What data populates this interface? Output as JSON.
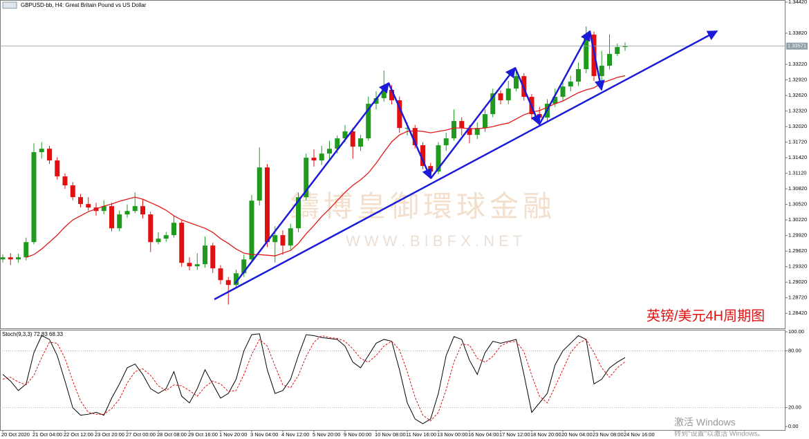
{
  "chart_data": [
    {
      "type": "candlestick",
      "title": "GBPUSD-bb, H4:  Great Britain Pound vs US Dollar",
      "categories": [
        "20 Oct 2020",
        null,
        null,
        null,
        "21 Oct 04:00",
        null,
        null,
        null,
        "22 Oct 12:00",
        null,
        null,
        null,
        "23 Oct 20:00",
        null,
        null,
        null,
        "27 Oct 00:00",
        null,
        null,
        null,
        "28 Oct 08:00",
        null,
        null,
        null,
        "29 Oct 16:00",
        null,
        null,
        null,
        "1 Nov 20:00",
        null,
        null,
        null,
        "3 Nov 04:00",
        null,
        null,
        null,
        "4 Nov 12:00",
        null,
        null,
        null,
        "5 Nov 20:00",
        null,
        null,
        null,
        "9 Nov 00:00",
        null,
        null,
        null,
        "10 Nov 08:00",
        null,
        null,
        null,
        "11 Nov 16:00",
        null,
        null,
        null,
        "13 Nov 00:00",
        null,
        null,
        null,
        "16 Nov 04:00",
        null,
        null,
        null,
        "17 Nov 12:00",
        null,
        null,
        null,
        "18 Nov 20:00",
        null,
        null,
        null,
        "20 Nov 04:00",
        null,
        null,
        null,
        "23 Nov 08:00",
        null,
        null,
        null,
        "24 Nov 16:00"
      ],
      "open": [
        1.2946,
        1.295,
        1.2946,
        1.295,
        1.29793,
        1.31527,
        1.31593,
        1.31367,
        1.3106,
        1.30887,
        1.3066,
        1.30527,
        1.3046,
        1.30393,
        1.30487,
        1.3006,
        1.30327,
        1.30393,
        1.30487,
        1.30327,
        1.29793,
        1.2986,
        1.29927,
        1.30167,
        1.29393,
        1.29327,
        1.29367,
        1.29727,
        1.29287,
        1.2906,
        1.28967,
        1.29193,
        1.2946,
        1.30593,
        1.31233,
        1.29793,
        1.29927,
        1.29727,
        1.3006,
        1.3066,
        1.3142,
        1.31367,
        1.315,
        1.31593,
        1.31793,
        1.31927,
        1.31633,
        1.31793,
        1.3246,
        1.32567,
        1.32727,
        1.32527,
        1.31993,
        1.31993,
        1.3166,
        1.3126,
        1.31153,
        1.3166,
        1.31793,
        1.32127,
        1.31993,
        1.3186,
        1.31993,
        1.3226,
        1.3266,
        1.32527,
        1.32753,
        1.32993,
        1.32593,
        1.3226,
        1.32193,
        1.3246,
        1.32593,
        1.32793,
        1.32887,
        1.33127,
        1.33793,
        1.32993,
        1.33193,
        1.3342,
        1.33553
      ],
      "high": [
        1.2956,
        1.2958,
        1.2957,
        1.2988,
        1.317,
        1.3172,
        1.3165,
        1.3143,
        1.3112,
        1.3095,
        1.3072,
        1.3066,
        1.3055,
        1.306,
        1.3055,
        1.304,
        1.3052,
        1.3075,
        1.3062,
        1.3038,
        1.2998,
        1.2999,
        1.303,
        1.3022,
        1.295,
        1.2958,
        1.299,
        1.2978,
        1.2935,
        1.2912,
        1.2926,
        1.2955,
        1.307,
        1.3162,
        1.313,
        1.301,
        1.3002,
        1.3015,
        1.3075,
        1.315,
        1.3158,
        1.3165,
        1.3175,
        1.3185,
        1.3205,
        1.32,
        1.3186,
        1.326,
        1.327,
        1.331,
        1.3282,
        1.326,
        1.321,
        1.3205,
        1.3172,
        1.3132,
        1.3172,
        1.319,
        1.3235,
        1.322,
        1.3205,
        1.321,
        1.3235,
        1.3275,
        1.3272,
        1.329,
        1.331,
        1.3305,
        1.3265,
        1.324,
        1.3255,
        1.3275,
        1.329,
        1.33,
        1.3325,
        1.3395,
        1.3385,
        1.3348,
        1.338,
        1.3362,
        1.3364
      ],
      "low": [
        1.294,
        1.2935,
        1.294,
        1.2944,
        1.2975,
        1.314,
        1.313,
        1.31,
        1.3082,
        1.306,
        1.3046,
        1.304,
        1.303,
        1.3033,
        1.3,
        1.3,
        1.3026,
        1.3035,
        1.3025,
        1.296,
        1.2975,
        1.298,
        1.2988,
        1.2932,
        1.2925,
        1.2926,
        1.293,
        1.292,
        1.2898,
        1.2859,
        1.289,
        1.2912,
        1.294,
        1.305,
        1.297,
        1.294,
        1.2955,
        1.2965,
        1.2998,
        1.306,
        1.3125,
        1.3128,
        1.314,
        1.315,
        1.3172,
        1.314,
        1.3155,
        1.3175,
        1.3235,
        1.325,
        1.3245,
        1.319,
        1.3185,
        1.316,
        1.312,
        1.3105,
        1.311,
        1.3155,
        1.3175,
        1.3185,
        1.317,
        1.3178,
        1.3192,
        1.322,
        1.3245,
        1.3245,
        1.327,
        1.3252,
        1.3215,
        1.3205,
        1.3212,
        1.324,
        1.3252,
        1.327,
        1.328,
        1.3305,
        1.329,
        1.328,
        1.3312,
        1.3338,
        1.3348
      ],
      "close": [
        1.295,
        1.2946,
        1.295,
        1.29793,
        1.31527,
        1.31593,
        1.31367,
        1.3106,
        1.30887,
        1.3066,
        1.30527,
        1.3046,
        1.30393,
        1.30487,
        1.3006,
        1.30327,
        1.30393,
        1.30487,
        1.30327,
        1.29793,
        1.2986,
        1.29927,
        1.30167,
        1.29393,
        1.29327,
        1.29367,
        1.29727,
        1.29287,
        1.2906,
        1.28967,
        1.29193,
        1.2946,
        1.30593,
        1.31233,
        1.29793,
        1.29927,
        1.29727,
        1.3006,
        1.3066,
        1.3142,
        1.31367,
        1.315,
        1.31593,
        1.31793,
        1.31927,
        1.31633,
        1.31793,
        1.3246,
        1.32567,
        1.32727,
        1.32527,
        1.31993,
        1.31993,
        1.3166,
        1.3126,
        1.31153,
        1.3166,
        1.31793,
        1.32127,
        1.31993,
        1.3186,
        1.31993,
        1.3226,
        1.3266,
        1.32527,
        1.32753,
        1.32993,
        1.32593,
        1.3226,
        1.32193,
        1.3246,
        1.32593,
        1.32793,
        1.32887,
        1.33127,
        1.33793,
        1.32993,
        1.33193,
        1.3342,
        1.33553,
        1.33571
      ],
      "up_color": "#1f9a1f",
      "down_color": "#e01010",
      "ma": {
        "color": "#e01818",
        "values": [
          null,
          null,
          null,
          1.295,
          1.29553,
          1.2966,
          1.29793,
          1.29927,
          1.30087,
          1.3022,
          1.303,
          1.3038,
          1.30433,
          1.30487,
          1.30527,
          1.3058,
          1.3062,
          1.3066,
          1.3062,
          1.30553,
          1.30487,
          1.30407,
          1.303,
          1.3022,
          1.30167,
          1.30113,
          1.3006,
          1.2998,
          1.2986,
          1.29767,
          1.2966,
          1.2958,
          1.29553,
          1.29553,
          1.2954,
          1.29527,
          1.2958,
          1.29633,
          1.29767,
          1.29953,
          1.30113,
          1.30287,
          1.30433,
          1.30593,
          1.30753,
          1.30887,
          1.30993,
          1.31127,
          1.31313,
          1.31527,
          1.31727,
          1.3186,
          1.31927,
          1.3194,
          1.31927,
          1.319,
          1.31927,
          1.31953,
          1.31993,
          1.31993,
          1.3198,
          1.3198,
          1.31993,
          1.3202,
          1.3206,
          1.32087,
          1.32167,
          1.32247,
          1.323,
          1.32327,
          1.32393,
          1.3246,
          1.32513,
          1.32593,
          1.32673,
          1.32727,
          1.32767,
          1.3286,
          1.32913,
          1.32967,
          1.33
        ]
      },
      "current_price": 1.33571,
      "ylim": [
        1.2813,
        1.3446
      ],
      "yticks": [
        {
          "value": 1.2842,
          "label": "1.28420"
        },
        {
          "value": 1.2872,
          "label": "1.28720"
        },
        {
          "value": 1.2902,
          "label": "1.29020"
        },
        {
          "value": 1.2932,
          "label": "1.29320"
        },
        {
          "value": 1.2962,
          "label": "1.29620"
        },
        {
          "value": 1.2992,
          "label": "1.29920"
        },
        {
          "value": 1.3022,
          "label": "1.30220"
        },
        {
          "value": 1.3052,
          "label": "1.30520"
        },
        {
          "value": 1.3082,
          "label": "1.30820"
        },
        {
          "value": 1.3112,
          "label": "1.31120"
        },
        {
          "value": 1.3142,
          "label": "1.31420"
        },
        {
          "value": 1.3172,
          "label": "1.31720"
        },
        {
          "value": 1.3202,
          "label": "1.32020"
        },
        {
          "value": 1.3232,
          "label": "1.32320"
        },
        {
          "value": 1.3262,
          "label": "1.32620"
        },
        {
          "value": 1.3292,
          "label": "1.32920"
        },
        {
          "value": 1.3322,
          "label": "1.33220"
        },
        {
          "value": 1.3382,
          "label": "1.33820"
        },
        {
          "value": 1.3442,
          "label": "1.34420"
        }
      ]
    },
    {
      "type": "line",
      "title": "Stoch(9,3,3) 72.83 68.33",
      "series": [
        {
          "color": "#000000",
          "values": [
            55,
            48,
            38,
            45,
            78,
            96,
            92,
            75,
            48,
            20,
            12,
            13,
            15,
            12,
            30,
            45,
            62,
            66,
            55,
            40,
            35,
            40,
            58,
            32,
            25,
            40,
            60,
            45,
            30,
            35,
            50,
            80,
            97,
            98,
            60,
            35,
            38,
            50,
            75,
            97,
            96,
            94,
            93,
            92,
            85,
            68,
            62,
            75,
            88,
            92,
            90,
            60,
            25,
            8,
            3,
            8,
            35,
            75,
            95,
            92,
            70,
            55,
            78,
            90,
            88,
            90,
            92,
            55,
            15,
            25,
            35,
            65,
            80,
            88,
            96,
            92,
            45,
            50,
            62,
            68,
            72.83
          ]
        },
        {
          "color": "#e01010",
          "values": [
            50,
            52,
            47,
            44,
            54,
            73,
            89,
            88,
            72,
            48,
            27,
            15,
            13,
            13,
            19,
            29,
            46,
            58,
            61,
            54,
            43,
            38,
            44,
            43,
            38,
            32,
            42,
            48,
            45,
            37,
            38,
            55,
            76,
            92,
            85,
            64,
            44,
            41,
            54,
            74,
            89,
            96,
            94,
            93,
            90,
            82,
            72,
            68,
            75,
            85,
            90,
            81,
            58,
            31,
            12,
            6,
            15,
            39,
            68,
            87,
            86,
            72,
            68,
            74,
            85,
            89,
            90,
            79,
            54,
            32,
            25,
            42,
            60,
            78,
            88,
            92,
            78,
            62,
            52,
            62,
            68.33
          ]
        }
      ],
      "ylim": [
        0,
        100
      ],
      "yticks": [
        {
          "value": 0,
          "label": "0.00"
        },
        {
          "value": 20,
          "label": "20.00"
        },
        {
          "value": 80,
          "label": "80.00"
        },
        {
          "value": 100,
          "label": "100.00"
        }
      ]
    }
  ],
  "watermark": {
    "name": "鑄博皇御環球金融",
    "url": "W W W . B I B F X . N E T"
  },
  "caption": "英镑/美元4H周期图",
  "os_notice": {
    "title": "激活 Windows",
    "text": "转到\"设置\"以激活 Windows。"
  }
}
